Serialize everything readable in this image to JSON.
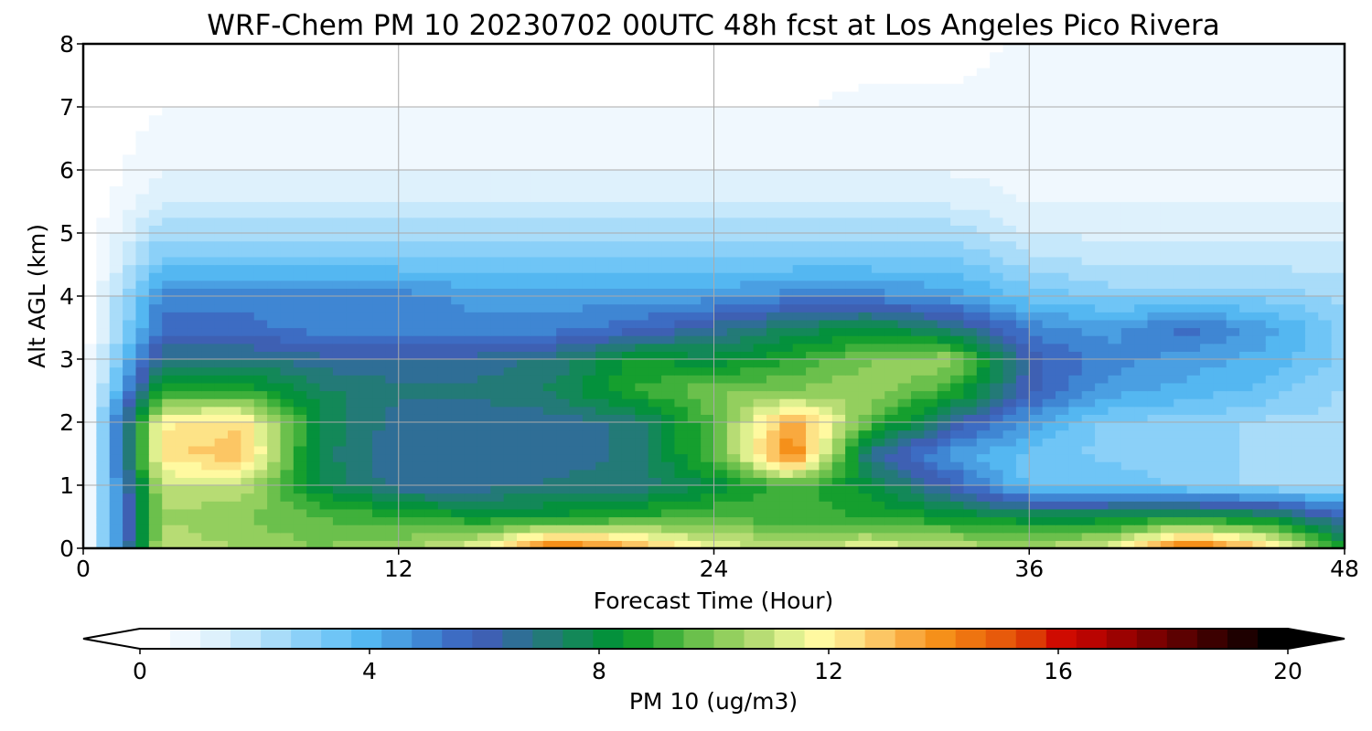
{
  "chart_data": {
    "type": "heatmap",
    "title": "WRF-Chem PM 10  20230702 00UTC 48h fcst at Los Angeles Pico Rivera",
    "xlabel": "Forecast Time (Hour)",
    "ylabel": "Alt AGL (km)",
    "xlim": [
      0,
      48
    ],
    "ylim": [
      0,
      8
    ],
    "x_ticks": [
      0,
      12,
      24,
      36,
      48
    ],
    "y_ticks": [
      0,
      1,
      2,
      3,
      4,
      5,
      6,
      7,
      8
    ],
    "grid": true,
    "x": [
      0,
      3,
      6,
      9,
      12,
      15,
      18,
      21,
      24,
      27,
      30,
      33,
      36,
      39,
      42,
      45,
      48
    ],
    "y": [
      0,
      0.5,
      1,
      1.5,
      2,
      2.5,
      3,
      3.5,
      4,
      4.5,
      5,
      5.5,
      6,
      7,
      8
    ],
    "z": [
      [
        0,
        11,
        10.5,
        10,
        10.5,
        11.5,
        15,
        13.5,
        11.5,
        11,
        11.5,
        11,
        10.5,
        11.5,
        15,
        13,
        8.5
      ],
      [
        0,
        10.5,
        10,
        9.5,
        9,
        8.5,
        8.5,
        9,
        9.5,
        9,
        9,
        8.5,
        8,
        8,
        8.5,
        8,
        6
      ],
      [
        0,
        11,
        11,
        8,
        6.5,
        6.5,
        7,
        7,
        8,
        9.5,
        8,
        6,
        3.5,
        3.5,
        3,
        2.5,
        2.5
      ],
      [
        0,
        12.5,
        13,
        7.5,
        6.5,
        6.5,
        6.5,
        7,
        9.5,
        14.5,
        6.5,
        4.5,
        3.5,
        3,
        3,
        2.5,
        2.5
      ],
      [
        0,
        12,
        12.5,
        8,
        6.5,
        6.5,
        6.5,
        7,
        9.5,
        13.5,
        9.5,
        6.5,
        4.5,
        3,
        3,
        2.5,
        2.5
      ],
      [
        0,
        9,
        9,
        7.5,
        7,
        7,
        7.5,
        9,
        10,
        10,
        10.5,
        9,
        6,
        4.5,
        4,
        3.5,
        2.5
      ],
      [
        0,
        7,
        7,
        6.5,
        6.5,
        6.5,
        7,
        8.5,
        8,
        9,
        10,
        10.5,
        6,
        5,
        4.5,
        4,
        3
      ],
      [
        0,
        5.5,
        5.5,
        5,
        5,
        5,
        5,
        5.5,
        6.5,
        7.5,
        8,
        7,
        5,
        4.5,
        5.5,
        4.5,
        3
      ],
      [
        0,
        5,
        5,
        5,
        5,
        4.5,
        4.5,
        4.5,
        4.5,
        5,
        5,
        4.5,
        3.5,
        3,
        3,
        3,
        2.5
      ],
      [
        0,
        3.5,
        3.5,
        3.5,
        3.5,
        3.5,
        3.5,
        3.5,
        3.5,
        3.5,
        3.5,
        3.5,
        2.5,
        2,
        2,
        2,
        2
      ],
      [
        0,
        2.5,
        2.5,
        2.5,
        2.5,
        2.5,
        2.5,
        2.5,
        2.5,
        2.5,
        2.5,
        2.5,
        1.5,
        1.5,
        1.5,
        1.5,
        1.5
      ],
      [
        0,
        1.5,
        1.5,
        1.5,
        1.5,
        1.5,
        1.5,
        1.5,
        1.5,
        1.5,
        1.5,
        1.5,
        1,
        1,
        1,
        1,
        1
      ],
      [
        0,
        1,
        1,
        1,
        1,
        1,
        1,
        1,
        1,
        1,
        1,
        1,
        0.8,
        0.8,
        0.8,
        0.8,
        0.8
      ],
      [
        0,
        0.5,
        0.5,
        0.5,
        0.5,
        0.5,
        0.5,
        0.5,
        0.5,
        0.5,
        0.6,
        0.6,
        0.6,
        0.7,
        0.7,
        0.7,
        0.7
      ],
      [
        0,
        0.4,
        0.4,
        0.4,
        0.4,
        0.4,
        0.4,
        0.4,
        0.4,
        0.4,
        0.4,
        0.4,
        0.6,
        0.7,
        0.8,
        0.8,
        0.8
      ]
    ],
    "colorbar": {
      "label": "PM 10  (ug/m3)",
      "min": 0,
      "max": 20,
      "ticks": [
        0,
        4,
        8,
        12,
        16,
        20
      ],
      "extend": "both",
      "placement": "bottom",
      "colors": [
        "#ffffff",
        "#f0f8fe",
        "#def1fc",
        "#c6e8fb",
        "#a9dcf9",
        "#8bd0f8",
        "#6fc5f6",
        "#54b7f1",
        "#4a9fe2",
        "#3f86d3",
        "#3d6cc3",
        "#3e60b3",
        "#2f6e96",
        "#237a77",
        "#138858",
        "#04913c",
        "#159f2e",
        "#3fb03b",
        "#6bc04c",
        "#93cf5e",
        "#b7dc74",
        "#dff08f",
        "#fff9a0",
        "#fde387",
        "#fcc664",
        "#f9a93e",
        "#f5901a",
        "#ee7410",
        "#e75a0b",
        "#dc3a05",
        "#cf0b01",
        "#b90401",
        "#9b0201",
        "#7c0101",
        "#5c0101",
        "#3c0000",
        "#1e0000",
        "#000000"
      ]
    }
  }
}
